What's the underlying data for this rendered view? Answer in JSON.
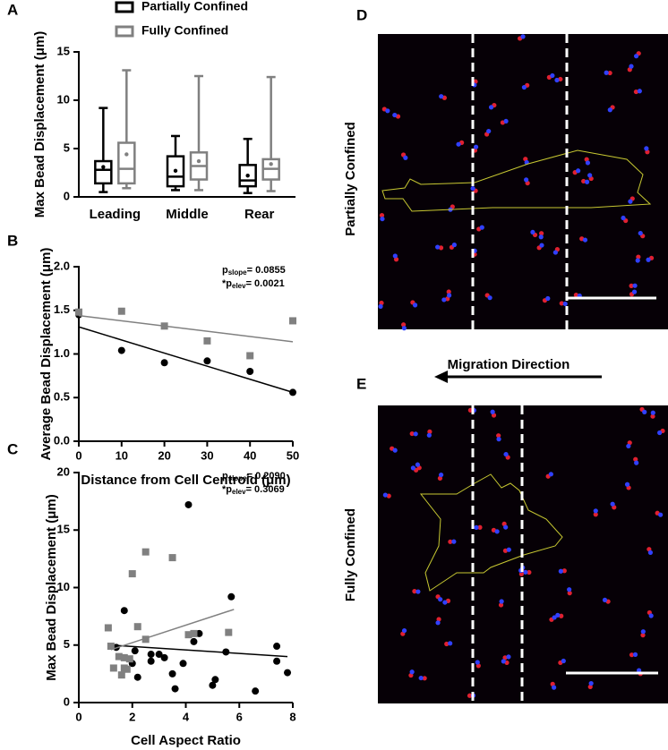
{
  "panel_labels": [
    "A",
    "B",
    "C",
    "D",
    "E"
  ],
  "images": {
    "top_label": "Partially Confined",
    "bottom_label": "Fully Confined",
    "arrow_label": "Migration Direction"
  },
  "chart_data": [
    {
      "type": "box",
      "ylabel": "Max Bead Displacement (μm)",
      "categories": [
        "Leading",
        "Middle",
        "Rear"
      ],
      "ylim": [
        0,
        15
      ],
      "yticks": [
        0,
        5,
        10,
        15
      ],
      "series": [
        {
          "name": "Partially Confined",
          "color": "#000000",
          "min": [
            0.5,
            0.7,
            0.4
          ],
          "q1": [
            1.4,
            1.1,
            1.1
          ],
          "median": [
            2.8,
            2.1,
            1.7
          ],
          "q3": [
            3.7,
            4.2,
            3.3
          ],
          "max": [
            9.2,
            6.3,
            6.0
          ],
          "mean": [
            3.1,
            2.7,
            2.2
          ]
        },
        {
          "name": "Fully Confined",
          "color": "#808080",
          "min": [
            0.9,
            0.7,
            0.6
          ],
          "q1": [
            1.4,
            1.8,
            1.8
          ],
          "median": [
            2.9,
            3.2,
            2.9
          ],
          "q3": [
            5.6,
            4.6,
            3.9
          ],
          "max": [
            13.1,
            12.5,
            12.4
          ],
          "mean": [
            4.4,
            3.7,
            3.4
          ]
        }
      ]
    },
    {
      "type": "scatter",
      "xlabel": "Distance from Cell Centroid (μm)",
      "ylabel": "Average Bead Displacement (μm)",
      "xlim": [
        0,
        50
      ],
      "xticks": [
        0,
        10,
        20,
        30,
        40,
        50
      ],
      "ylim": [
        0,
        2
      ],
      "yticks": [
        {
          "value": 0,
          "label": "0.0"
        },
        0.5,
        {
          "value": 1,
          "label": "1.0"
        },
        1.5,
        {
          "value": 2,
          "label": "2.0"
        }
      ],
      "annotations": [
        {
          "prefix": "p",
          "sub": "slope",
          "text": "= 0.0855"
        },
        {
          "prefix": "*p",
          "sub": "elev",
          "text": "= 0.0021"
        }
      ],
      "series": [
        {
          "color": "#000000",
          "marker": "circle",
          "x": [
            0,
            10,
            20,
            30,
            40,
            50
          ],
          "values": [
            1.45,
            1.04,
            0.9,
            0.92,
            0.8,
            0.56
          ],
          "fit_x": [
            0,
            50
          ],
          "fit_y": [
            1.31,
            0.56
          ]
        },
        {
          "color": "#808080",
          "marker": "square",
          "x": [
            0,
            10,
            20,
            30,
            40,
            50
          ],
          "values": [
            1.48,
            1.49,
            1.32,
            1.15,
            0.98,
            1.38
          ],
          "fit_x": [
            0,
            50
          ],
          "fit_y": [
            1.44,
            1.14
          ]
        }
      ]
    },
    {
      "type": "scatter",
      "xlabel": "Cell Aspect Ratio",
      "ylabel": "Max Bead Displacement (μm)",
      "xlim": [
        0,
        8
      ],
      "xticks": [
        0,
        2,
        4,
        6,
        8
      ],
      "ylim": [
        0,
        20
      ],
      "yticks": [
        0,
        5,
        10,
        15,
        20
      ],
      "annotations": [
        {
          "prefix": "p",
          "sub": "slope",
          "text": "= 0.2090"
        },
        {
          "prefix": "*p",
          "sub": "elev",
          "text": "= 0.3069"
        }
      ],
      "series": [
        {
          "color": "#000000",
          "marker": "circle",
          "x": [
            1.7,
            2.0,
            2.2,
            2.7,
            2.7,
            3.0,
            3.2,
            3.5,
            3.6,
            3.9,
            4.1,
            4.3,
            4.5,
            5.0,
            5.1,
            5.5,
            5.7,
            6.6,
            7.4,
            7.4,
            7.8,
            1.4,
            2.1
          ],
          "values": [
            8.0,
            3.4,
            2.2,
            4.2,
            3.6,
            4.2,
            3.9,
            2.5,
            1.2,
            3.4,
            17.2,
            5.3,
            6.0,
            1.5,
            2.0,
            4.4,
            9.2,
            1.0,
            4.9,
            3.6,
            2.6,
            4.8,
            4.5
          ],
          "fit_x": [
            1.2,
            7.8
          ],
          "fit_y": [
            5.0,
            4.0
          ]
        },
        {
          "color": "#808080",
          "marker": "square",
          "x": [
            1.1,
            1.2,
            1.3,
            1.5,
            1.6,
            1.7,
            1.8,
            1.9,
            2.0,
            2.2,
            2.5,
            2.5,
            3.5,
            4.1,
            4.3,
            5.6,
            1.7
          ],
          "values": [
            6.5,
            4.9,
            3.0,
            4.0,
            2.4,
            3.9,
            2.9,
            3.8,
            11.2,
            6.6,
            13.1,
            5.5,
            12.6,
            5.9,
            6.0,
            6.1,
            3.0
          ],
          "fit_x": [
            1.2,
            5.8
          ],
          "fit_y": [
            4.6,
            8.1
          ]
        }
      ]
    }
  ]
}
